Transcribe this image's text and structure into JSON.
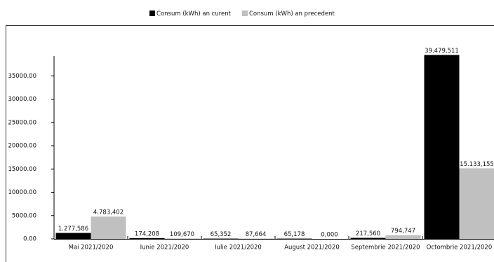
{
  "chart_data": {
    "type": "bar",
    "categories": [
      "Mai 2021/2020",
      "Iunie 2021/2020",
      "Iulie 2021/2020",
      "August 2021/2020",
      "Septembrie 2021/2020",
      "Octombrie 2021/2020"
    ],
    "series": [
      {
        "name": "Consum (kWh) an curent",
        "color": "#000000",
        "values": [
          1277.586,
          174.208,
          65.352,
          65.178,
          217.56,
          39479.511
        ],
        "value_labels": [
          "1.277,586",
          "174,208",
          "65,352",
          "65,178",
          "217,560",
          "39.479,511"
        ]
      },
      {
        "name": "Consum (kWh) an precedent",
        "color": "#c0c0c0",
        "values": [
          4783.402,
          109.67,
          87.664,
          0.0,
          794.747,
          15133.155
        ],
        "value_labels": [
          "4.783,402",
          "109,670",
          "87,664",
          "0,000",
          "794,747",
          "15.133,155"
        ]
      }
    ],
    "ylim": [
      0,
      40000
    ],
    "yticks": [
      {
        "value": 0,
        "label": "0.00"
      },
      {
        "value": 5000,
        "label": "5000.00"
      },
      {
        "value": 10000,
        "label": "10000.00"
      },
      {
        "value": 15000,
        "label": "15000.00"
      },
      {
        "value": 20000,
        "label": "20000.00"
      },
      {
        "value": 25000,
        "label": "25000.00"
      },
      {
        "value": 30000,
        "label": "30000.00"
      },
      {
        "value": 35000,
        "label": "35000.00"
      }
    ],
    "legend": "top"
  }
}
